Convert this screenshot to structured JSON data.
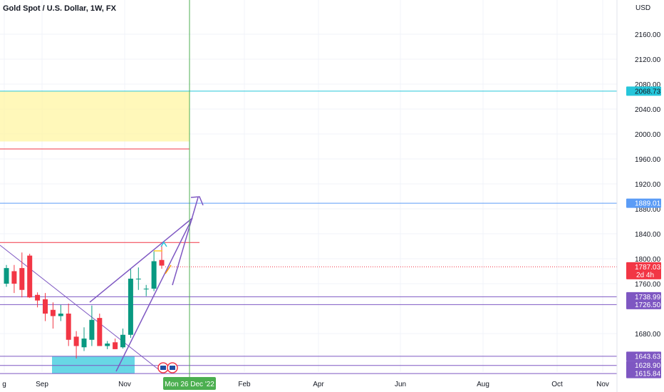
{
  "header": {
    "symbol_title": "Gold Spot / U.S. Dollar, 1W, FX",
    "currency": "USD"
  },
  "colors": {
    "up": "#089981",
    "down": "#f23645",
    "crosshair": "#4caf50",
    "purple": "#7e57c2",
    "cyan_line": "#26c6da",
    "blue_line": "#5b9cf6",
    "red_level": "#f23645",
    "yellow_zone": "#fff59d",
    "cyan_box": "#4dd0e1"
  },
  "chart_data": {
    "type": "candlestick",
    "symbol": "Gold Spot / U.S. Dollar",
    "interval": "1W",
    "exchange": "FX",
    "ylim": [
      1610,
      2190
    ],
    "y_ticks": [
      2160,
      2120,
      2080,
      2040,
      2000,
      1960,
      1920,
      1880,
      1840,
      1800,
      1760,
      1680
    ],
    "x_ticks": [
      "g",
      "Sep",
      "Nov",
      "Feb",
      "Apr",
      "Jun",
      "Aug",
      "Oct",
      "Nov"
    ],
    "crosshair_date": "Mon 26 Dec '22",
    "candles": [
      {
        "o": 1760,
        "h": 1790,
        "l": 1755,
        "c": 1785
      },
      {
        "o": 1780,
        "h": 1790,
        "l": 1745,
        "c": 1760
      },
      {
        "o": 1785,
        "h": 1810,
        "l": 1738,
        "c": 1750
      },
      {
        "o": 1805,
        "h": 1808,
        "l": 1737,
        "c": 1738
      },
      {
        "o": 1742,
        "h": 1746,
        "l": 1722,
        "c": 1733
      },
      {
        "o": 1735,
        "h": 1745,
        "l": 1700,
        "c": 1712
      },
      {
        "o": 1718,
        "h": 1730,
        "l": 1688,
        "c": 1708
      },
      {
        "o": 1708,
        "h": 1726,
        "l": 1700,
        "c": 1712
      },
      {
        "o": 1712,
        "h": 1728,
        "l": 1660,
        "c": 1670
      },
      {
        "o": 1675,
        "h": 1684,
        "l": 1640,
        "c": 1660
      },
      {
        "o": 1658,
        "h": 1690,
        "l": 1652,
        "c": 1672
      },
      {
        "o": 1670,
        "h": 1725,
        "l": 1660,
        "c": 1702
      },
      {
        "o": 1705,
        "h": 1712,
        "l": 1660,
        "c": 1660
      },
      {
        "o": 1660,
        "h": 1668,
        "l": 1655,
        "c": 1664
      },
      {
        "o": 1666,
        "h": 1672,
        "l": 1655,
        "c": 1655
      },
      {
        "o": 1658,
        "h": 1688,
        "l": 1656,
        "c": 1678
      },
      {
        "o": 1678,
        "h": 1784,
        "l": 1673,
        "c": 1768
      },
      {
        "o": 1768,
        "h": 1786,
        "l": 1750,
        "c": 1768
      },
      {
        "o": 1751,
        "h": 1758,
        "l": 1740,
        "c": 1752
      },
      {
        "o": 1752,
        "h": 1812,
        "l": 1748,
        "c": 1796
      },
      {
        "o": 1798,
        "h": 1822,
        "l": 1784,
        "c": 1789
      }
    ],
    "price_labels": [
      {
        "text": "2068.73",
        "price": 2068.73,
        "kind": "cyan"
      },
      {
        "text": "1889.01",
        "price": 1889.01,
        "kind": "blue"
      },
      {
        "text": "1787.03",
        "price": 1787.03,
        "kind": "current"
      },
      {
        "text": "1738.99",
        "price": 1738.99,
        "kind": "purple"
      },
      {
        "text": "1726.50",
        "price": 1726.5,
        "kind": "purple"
      },
      {
        "text": "1643.63",
        "price": 1643.63,
        "kind": "purple"
      },
      {
        "text": "1628.90",
        "price": 1628.9,
        "kind": "purple"
      },
      {
        "text": "1615.84",
        "price": 1615.84,
        "kind": "purple"
      }
    ],
    "countdown": "2d 4h",
    "zones": [
      {
        "kind": "yellow",
        "top": 2068.73,
        "bottom": 1988
      },
      {
        "kind": "cyan",
        "top": 1643.63,
        "bottom": 1615.84
      }
    ],
    "red_levels": [
      1976,
      1826
    ],
    "grid": true
  }
}
